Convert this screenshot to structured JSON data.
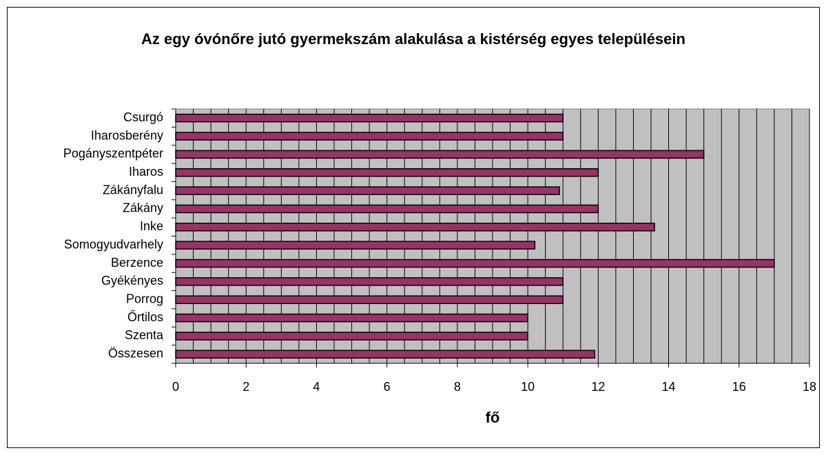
{
  "chart_data": {
    "type": "barh",
    "title": "Az egy óvónőre jutó gyermekszám alakulása a kistérség egyes településein",
    "x_label": "fő",
    "categories": [
      "Csurgó",
      "Iharosberény",
      "Pogányszentpéter",
      "Iharos",
      "Zákányfalu",
      "Zákány",
      "Inke",
      "Somogyudvarhely",
      "Berzence",
      "Gyékényes",
      "Porrog",
      "Őrtilos",
      "Szenta",
      "Összesen"
    ],
    "values": [
      11,
      11,
      15,
      12,
      10.9,
      12,
      13.6,
      10.2,
      17,
      11,
      11,
      10,
      10,
      11.9
    ],
    "color": "#993366",
    "xlim": [
      0,
      18
    ],
    "xticks": [
      0,
      2,
      4,
      6,
      8,
      10,
      12,
      14,
      16,
      18
    ],
    "xgrid": [
      0.5,
      1,
      1.5,
      2,
      2.5,
      3,
      3.5,
      4,
      4.5,
      5,
      5.5,
      6,
      6.5,
      7,
      7.5,
      8,
      8.5,
      9,
      9.5,
      10,
      10.5,
      11,
      11.5,
      12,
      12.5,
      13,
      13.5,
      14,
      14.5,
      15,
      15.5,
      16,
      16.5,
      17,
      17.5,
      18
    ],
    "plot_background": "#c0c0c0"
  }
}
